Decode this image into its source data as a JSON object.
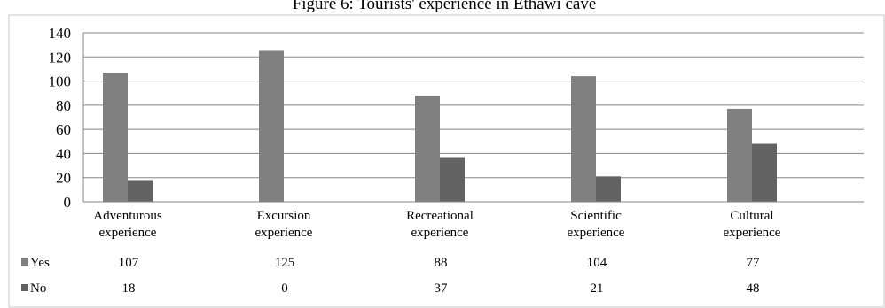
{
  "chart_data": {
    "type": "bar",
    "title": "Figure 6: Tourists' experience in Ethawi cave",
    "categories": [
      [
        "Adventurous",
        "experience"
      ],
      [
        "Excursion",
        "experience"
      ],
      [
        "Recreational",
        "experience"
      ],
      [
        "Scientific",
        "experience"
      ],
      [
        "Cultural",
        "experience"
      ]
    ],
    "series": [
      {
        "name": "Yes",
        "values": [
          107,
          125,
          88,
          104,
          77
        ],
        "color": "#808080"
      },
      {
        "name": "No",
        "values": [
          18,
          0,
          37,
          21,
          48
        ],
        "color": "#636363"
      }
    ],
    "yticks": [
      0,
      20,
      40,
      60,
      80,
      100,
      120,
      140
    ],
    "ylim": [
      0,
      140
    ],
    "grid": true,
    "legend": "data-table"
  }
}
